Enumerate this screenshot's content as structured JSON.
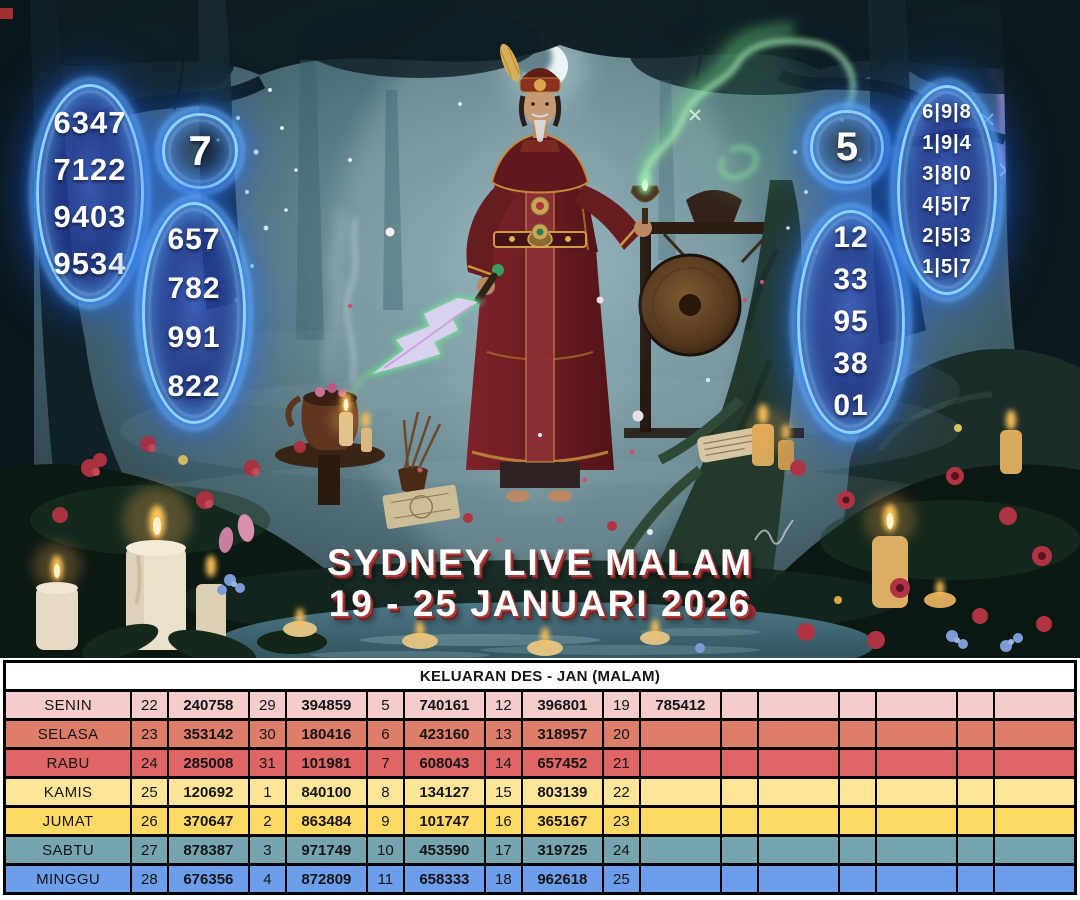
{
  "artwork": {
    "title_line1": "SYDNEY LIVE MALAM",
    "title_line2": "19 - 25 JANUARI 2026",
    "glow_color": "#3f9bff",
    "panels": {
      "left_4d": {
        "values": [
          "6347",
          "7122",
          "9403",
          "9534"
        ]
      },
      "left_circle": "7",
      "left_3d": {
        "values": [
          "657",
          "782",
          "991",
          "822"
        ]
      },
      "right_circle": "5",
      "right_2d": {
        "values": [
          "12",
          "33",
          "95",
          "38",
          "01"
        ]
      },
      "right_triples": {
        "values": [
          "6|9|8",
          "1|9|4",
          "3|8|0",
          "4|5|7",
          "2|5|3",
          "1|5|7"
        ]
      }
    }
  },
  "table": {
    "header": "KELUARAN DES - JAN (MALAM)",
    "rows": [
      {
        "day": "SENIN",
        "color": "#f4cccc",
        "cells": [
          "22",
          "240758",
          "29",
          "394859",
          "5",
          "740161",
          "12",
          "396801",
          "19",
          "785412",
          "",
          "",
          "",
          "",
          "",
          ""
        ]
      },
      {
        "day": "SELASA",
        "color": "#dd7e6b",
        "cells": [
          "23",
          "353142",
          "30",
          "180416",
          "6",
          "423160",
          "13",
          "318957",
          "20",
          "",
          "",
          "",
          "",
          "",
          "",
          ""
        ]
      },
      {
        "day": "RABU",
        "color": "#e06666",
        "cells": [
          "24",
          "285008",
          "31",
          "101981",
          "7",
          "608043",
          "14",
          "657452",
          "21",
          "",
          "",
          "",
          "",
          "",
          "",
          ""
        ]
      },
      {
        "day": "KAMIS",
        "color": "#ffe599",
        "cells": [
          "25",
          "120692",
          "1",
          "840100",
          "8",
          "134127",
          "15",
          "803139",
          "22",
          "",
          "",
          "",
          "",
          "",
          "",
          ""
        ]
      },
      {
        "day": "JUMAT",
        "color": "#ffd966",
        "cells": [
          "26",
          "370647",
          "2",
          "863484",
          "9",
          "101747",
          "16",
          "365167",
          "23",
          "",
          "",
          "",
          "",
          "",
          "",
          ""
        ]
      },
      {
        "day": "SABTU",
        "color": "#76a5af",
        "cells": [
          "27",
          "878387",
          "3",
          "971749",
          "10",
          "453590",
          "17",
          "319725",
          "24",
          "",
          "",
          "",
          "",
          "",
          "",
          ""
        ]
      },
      {
        "day": "MINGGU",
        "color": "#6d9eeb",
        "cells": [
          "28",
          "676356",
          "4",
          "872809",
          "11",
          "658333",
          "18",
          "962618",
          "25",
          "",
          "",
          "",
          "",
          "",
          "",
          ""
        ]
      }
    ]
  }
}
